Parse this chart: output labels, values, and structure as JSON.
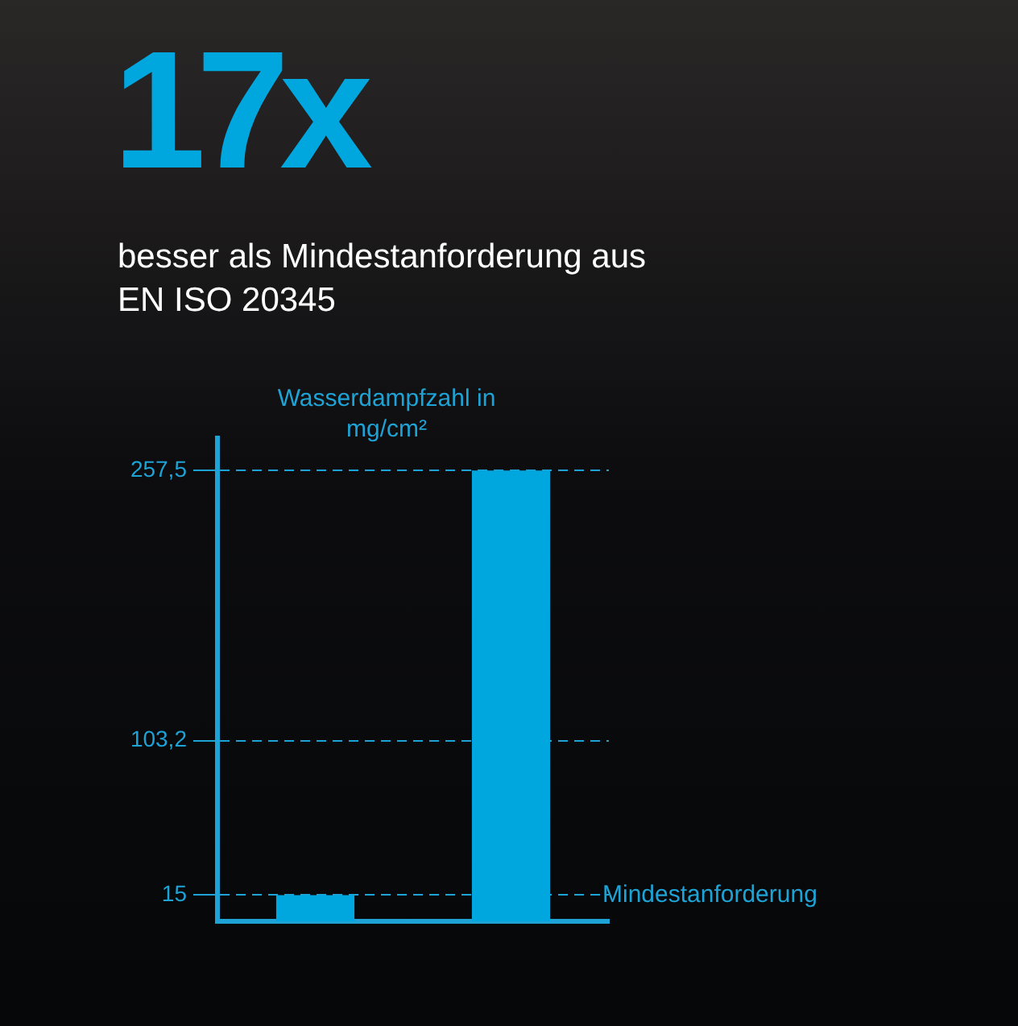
{
  "chart_data": {
    "type": "bar",
    "title": "17x",
    "subtitle": "besser als Mindestanforderung aus EN ISO 20345",
    "ylabel": "Wasserdampfzahl in mg/cm²",
    "categories": [
      null,
      null
    ],
    "values": [
      15,
      257.5
    ],
    "color": "#00a6de",
    "ylim": [
      0,
      276
    ],
    "yticks": [
      15,
      {
        "value": 103.2,
        "label": "103,2"
      },
      {
        "value": 257.5,
        "label": "257,5"
      }
    ],
    "grid": "y",
    "annotations": [
      "Mindestanforderung"
    ]
  }
}
